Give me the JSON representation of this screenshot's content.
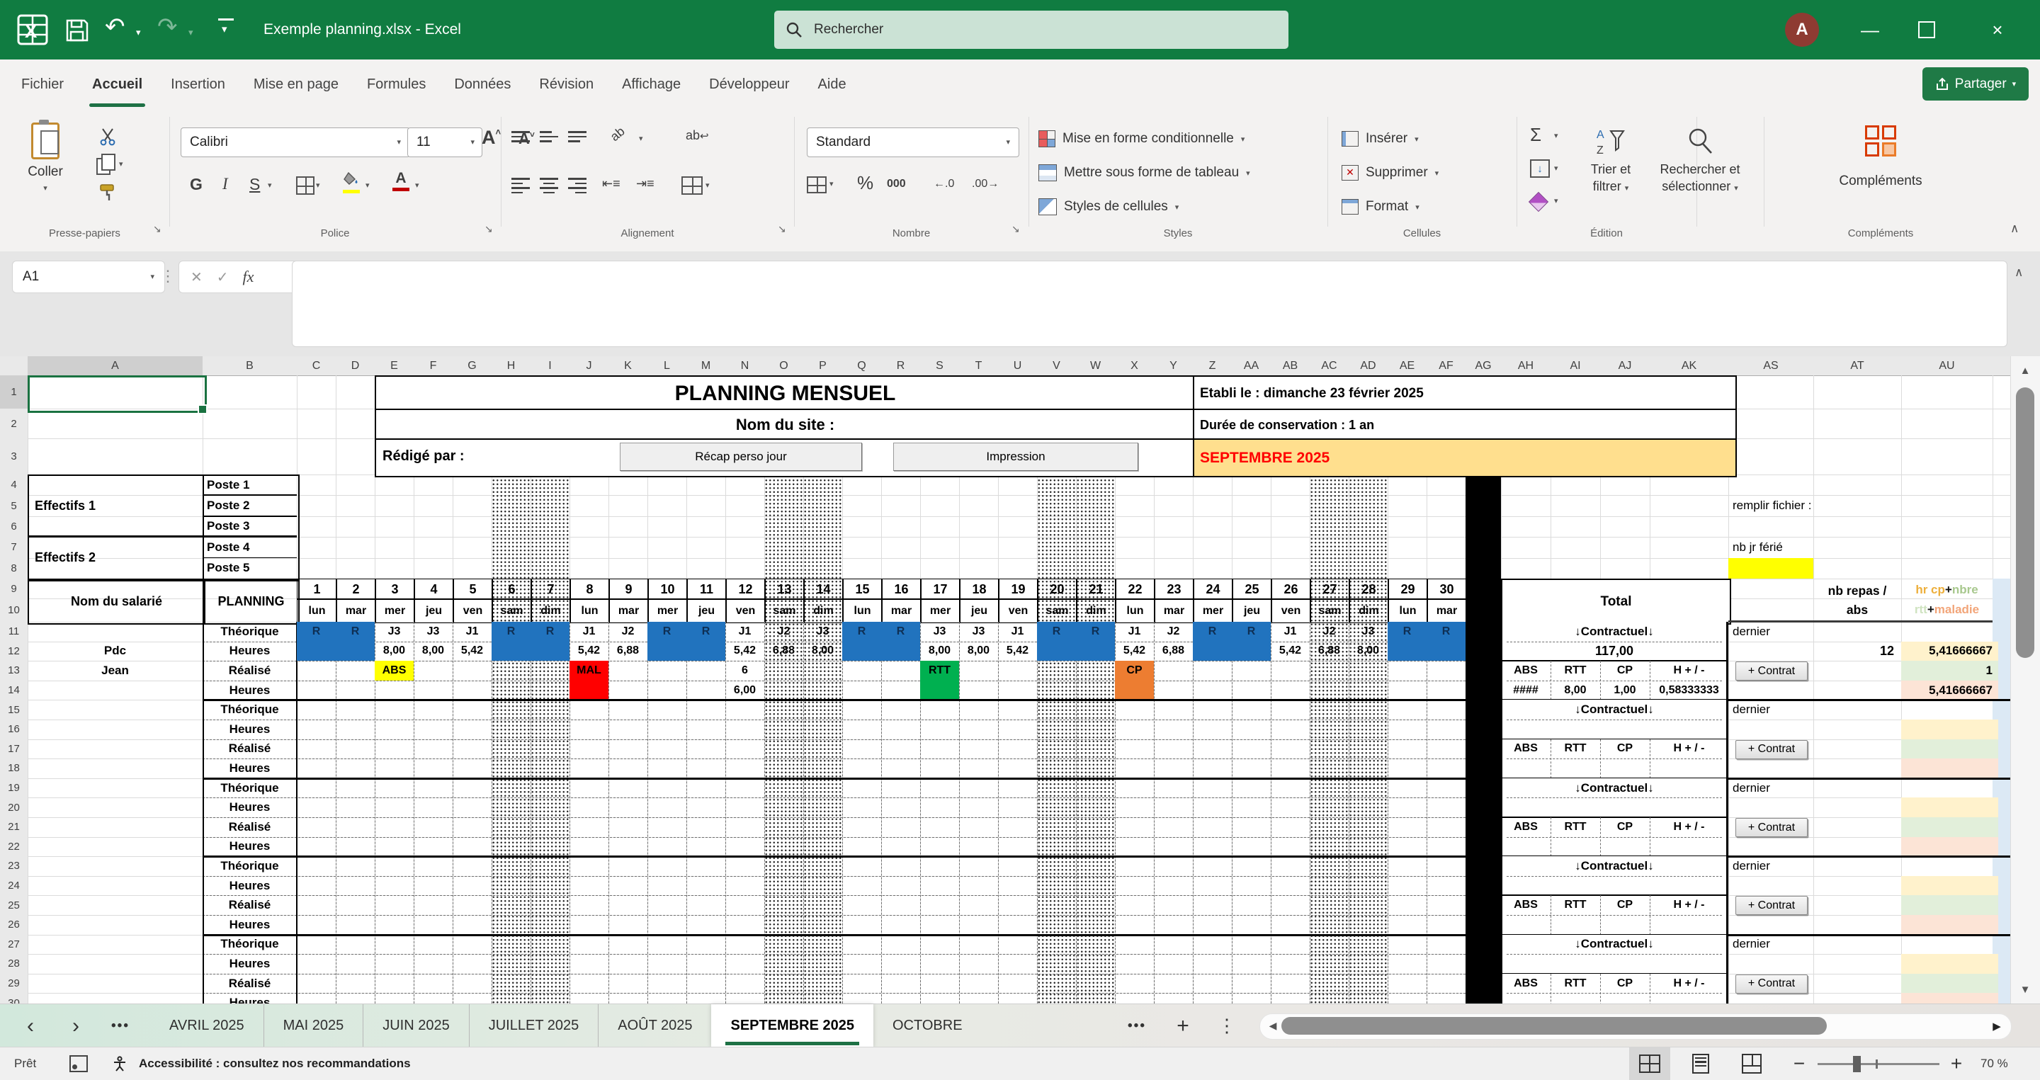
{
  "colors": {
    "titlebar_green": "#107C41",
    "accent_green": "#1E7145",
    "blue": "#2173BE",
    "r_text": "#0E2F54",
    "yellow": "#FFFF00",
    "red": "#FF0000",
    "green": "#00B050",
    "orange": "#ED7D31",
    "banner_bg": "#FFDF8E",
    "banner_text": "#FF0000",
    "au_yellow": "#FFF2CC",
    "au_green": "#E2EFDA",
    "au_pink": "#FCE4D6",
    "strip_blue": "#DCE9F5",
    "ferie_yellow": "#FFFF00"
  },
  "titlebar": {
    "title": "Exemple planning.xlsx  -  Excel",
    "search_placeholder": "Rechercher",
    "avatar_initial": "A"
  },
  "ribbon": {
    "tabs": [
      "Fichier",
      "Accueil",
      "Insertion",
      "Mise en page",
      "Formules",
      "Données",
      "Révision",
      "Affichage",
      "Développeur",
      "Aide"
    ],
    "active_tab": "Accueil",
    "share_label": "Partager",
    "groups": {
      "presse_papiers": {
        "label": "Presse-papiers",
        "coller": "Coller"
      },
      "police": {
        "label": "Police",
        "font_name": "Calibri",
        "font_size": "11",
        "bold": "G",
        "italic": "I",
        "underline": "S"
      },
      "alignement": {
        "label": "Alignement",
        "wrap": "ab"
      },
      "nombre": {
        "label": "Nombre",
        "format": "Standard",
        "percent": "%",
        "thousands": "000",
        "dec_left": "←.0",
        "dec_right": ".00→"
      },
      "styles": {
        "label": "Styles",
        "items": [
          "Mise en forme conditionnelle",
          "Mettre sous forme de tableau",
          "Styles de cellules"
        ]
      },
      "cellules": {
        "label": "Cellules",
        "items": [
          "Insérer",
          "Supprimer",
          "Format"
        ]
      },
      "edition": {
        "label": "Édition",
        "sort_line1": "Trier et",
        "sort_line2": "filtrer",
        "find_line1": "Rechercher et",
        "find_line2": "sélectionner"
      },
      "complements": {
        "label": "Compléments",
        "button": "Compléments"
      }
    }
  },
  "formula_bar": {
    "cell_ref": "A1",
    "fx": "fx"
  },
  "sheet": {
    "fixed_col_letters": [
      "A",
      "B"
    ],
    "day_col_letters": [
      "C",
      "D",
      "E",
      "F",
      "G",
      "H",
      "I",
      "J",
      "K",
      "L",
      "M",
      "N",
      "O",
      "P",
      "Q",
      "R",
      "S",
      "T",
      "U",
      "V",
      "W",
      "X",
      "Y",
      "Z",
      "AA",
      "AB",
      "AC",
      "AD",
      "AE",
      "AF"
    ],
    "right_col_letters": [
      "AG",
      "AH",
      "AI",
      "AJ",
      "AK",
      "AS",
      "AT",
      "AU"
    ],
    "title": "PLANNING MENSUEL",
    "subtitle": "Nom du site :",
    "redige": "Rédigé par :",
    "buttons": {
      "recap": "Récap  perso jour",
      "impression": "Impression",
      "contrat": "+ Contrat"
    },
    "etabli": "Etabli le : dimanche 23 février 2025",
    "duree": "Durée de conservation : 1 an",
    "month_banner": "SEPTEMBRE 2025",
    "effectifs": [
      {
        "label": "Effectifs 1",
        "postes": [
          "Poste 1",
          "Poste 2",
          "Poste 3"
        ]
      },
      {
        "label": "Effectifs 2",
        "postes": [
          "Poste 4",
          "Poste 5"
        ]
      }
    ],
    "nom_salarie": "Nom du salarié",
    "planning": "PLANNING",
    "total": "Total",
    "remplir": "remplir fichier :",
    "nb_jr_ferie": "nb jr férié",
    "nb_repas_lines": [
      "nb repas /",
      "abs"
    ],
    "au_header_lines": [
      [
        {
          "t": "hr cp",
          "c": "#EDAF3C"
        },
        {
          "t": " + ",
          "c": "#111111"
        },
        {
          "t": "nbre",
          "c": "#A8C88E"
        }
      ],
      [
        {
          "t": "rtt",
          "c": "#CFE3C0"
        },
        {
          "t": " + ",
          "c": "#111111"
        },
        {
          "t": "maladie",
          "c": "#F2A579"
        }
      ]
    ],
    "employee": [
      "Pdc",
      "Jean"
    ],
    "row_labels": [
      "Théorique",
      "Heures",
      "Réalisé",
      "Heures"
    ],
    "contractuel": "↓Contractuel↓",
    "dernier": "dernier",
    "abs_cols": [
      "ABS",
      "RTT",
      "CP",
      "H + / -"
    ],
    "days": [
      {
        "n": "1",
        "d": "lun"
      },
      {
        "n": "2",
        "d": "mar"
      },
      {
        "n": "3",
        "d": "mer"
      },
      {
        "n": "4",
        "d": "jeu"
      },
      {
        "n": "5",
        "d": "ven"
      },
      {
        "n": "6",
        "d": "sam"
      },
      {
        "n": "7",
        "d": "dim"
      },
      {
        "n": "8",
        "d": "lun"
      },
      {
        "n": "9",
        "d": "mar"
      },
      {
        "n": "10",
        "d": "mer"
      },
      {
        "n": "11",
        "d": "jeu"
      },
      {
        "n": "12",
        "d": "ven"
      },
      {
        "n": "13",
        "d": "sam"
      },
      {
        "n": "14",
        "d": "dim"
      },
      {
        "n": "15",
        "d": "lun"
      },
      {
        "n": "16",
        "d": "mar"
      },
      {
        "n": "17",
        "d": "mer"
      },
      {
        "n": "18",
        "d": "jeu"
      },
      {
        "n": "19",
        "d": "ven"
      },
      {
        "n": "20",
        "d": "sam"
      },
      {
        "n": "21",
        "d": "dim"
      },
      {
        "n": "22",
        "d": "lun"
      },
      {
        "n": "23",
        "d": "mar"
      },
      {
        "n": "24",
        "d": "mer"
      },
      {
        "n": "25",
        "d": "jeu"
      },
      {
        "n": "26",
        "d": "ven"
      },
      {
        "n": "27",
        "d": "sam"
      },
      {
        "n": "28",
        "d": "dim"
      },
      {
        "n": "29",
        "d": "lun"
      },
      {
        "n": "30",
        "d": "mar"
      }
    ],
    "weekend": [
      6,
      7,
      13,
      14,
      20,
      21,
      27,
      28
    ],
    "theorique": [
      "R",
      "R",
      "J3",
      "J3",
      "J1",
      "R",
      "R",
      "J1",
      "J2",
      "R",
      "R",
      "J1",
      "J2",
      "J3",
      "R",
      "R",
      "J3",
      "J3",
      "J1",
      "R",
      "R",
      "J1",
      "J2",
      "R",
      "R",
      "J1",
      "J2",
      "J3",
      "R",
      "R"
    ],
    "heures": [
      "",
      "",
      "8,00",
      "8,00",
      "5,42",
      "",
      "",
      "5,42",
      "6,88",
      "",
      "",
      "5,42",
      "6,88",
      "8,00",
      "",
      "",
      "8,00",
      "8,00",
      "5,42",
      "",
      "",
      "5,42",
      "6,88",
      "",
      "",
      "5,42",
      "6,88",
      "8,00",
      "",
      ""
    ],
    "realise": {
      "3": {
        "t": "ABS",
        "bg": "#FFFF00"
      },
      "8": {
        "t": "MAL",
        "bg": "#FF0000"
      },
      "12": {
        "t": "6"
      },
      "17": {
        "t": "RTT",
        "bg": "#00B050"
      },
      "22": {
        "t": "CP",
        "bg": "#ED7D31"
      }
    },
    "realise_heures": {
      "8": {
        "bg": "#FF0000"
      },
      "12": {
        "t": "6,00"
      },
      "17": {
        "bg": "#00B050"
      },
      "22": {
        "bg": "#ED7D31"
      }
    },
    "block1": {
      "total": "117,00",
      "abs": "####",
      "rtt": "8,00",
      "cp": "1,00",
      "hpm": "0,58333333",
      "repas": "12",
      "au_top": "5,41666667",
      "au_mid": "1",
      "au_bot": "5,41666667"
    },
    "num_blocks": 5
  },
  "sheet_tabs": {
    "tabs": [
      "AVRIL 2025",
      "MAI 2025",
      "JUIN 2025",
      "JUILLET 2025",
      "AOÛT 2025",
      "SEPTEMBRE 2025",
      "OCTOBRE"
    ],
    "active": "SEPTEMBRE 2025"
  },
  "status_bar": {
    "ready": "Prêt",
    "accessibility": "Accessibilité : consultez nos recommandations",
    "zoom_level": "70 %"
  }
}
